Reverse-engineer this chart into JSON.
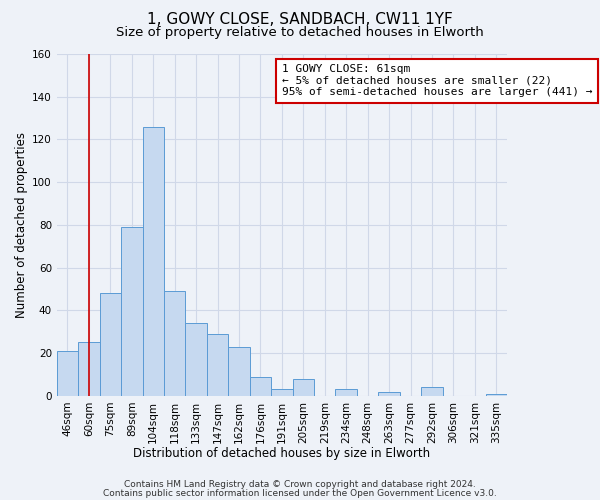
{
  "title": "1, GOWY CLOSE, SANDBACH, CW11 1YF",
  "subtitle": "Size of property relative to detached houses in Elworth",
  "xlabel": "Distribution of detached houses by size in Elworth",
  "ylabel": "Number of detached properties",
  "bar_labels": [
    "46sqm",
    "60sqm",
    "75sqm",
    "89sqm",
    "104sqm",
    "118sqm",
    "133sqm",
    "147sqm",
    "162sqm",
    "176sqm",
    "191sqm",
    "205sqm",
    "219sqm",
    "234sqm",
    "248sqm",
    "263sqm",
    "277sqm",
    "292sqm",
    "306sqm",
    "321sqm",
    "335sqm"
  ],
  "bar_heights": [
    21,
    25,
    48,
    79,
    126,
    49,
    34,
    29,
    23,
    9,
    3,
    8,
    0,
    3,
    0,
    2,
    0,
    4,
    0,
    0,
    1
  ],
  "bar_color": "#c6d9f0",
  "bar_edge_color": "#5b9bd5",
  "bar_width": 1.0,
  "ylim": [
    0,
    160
  ],
  "yticks": [
    0,
    20,
    40,
    60,
    80,
    100,
    120,
    140,
    160
  ],
  "vline_x": 1,
  "vline_color": "#cc0000",
  "annotation_text": "1 GOWY CLOSE: 61sqm\n← 5% of detached houses are smaller (22)\n95% of semi-detached houses are larger (441) →",
  "annotation_box_edgecolor": "#cc0000",
  "footer_line1": "Contains HM Land Registry data © Crown copyright and database right 2024.",
  "footer_line2": "Contains public sector information licensed under the Open Government Licence v3.0.",
  "background_color": "#eef2f8",
  "grid_color": "#d0d8e8",
  "title_fontsize": 11,
  "subtitle_fontsize": 9.5,
  "axis_label_fontsize": 8.5,
  "tick_fontsize": 7.5,
  "annotation_fontsize": 8,
  "footer_fontsize": 6.5
}
